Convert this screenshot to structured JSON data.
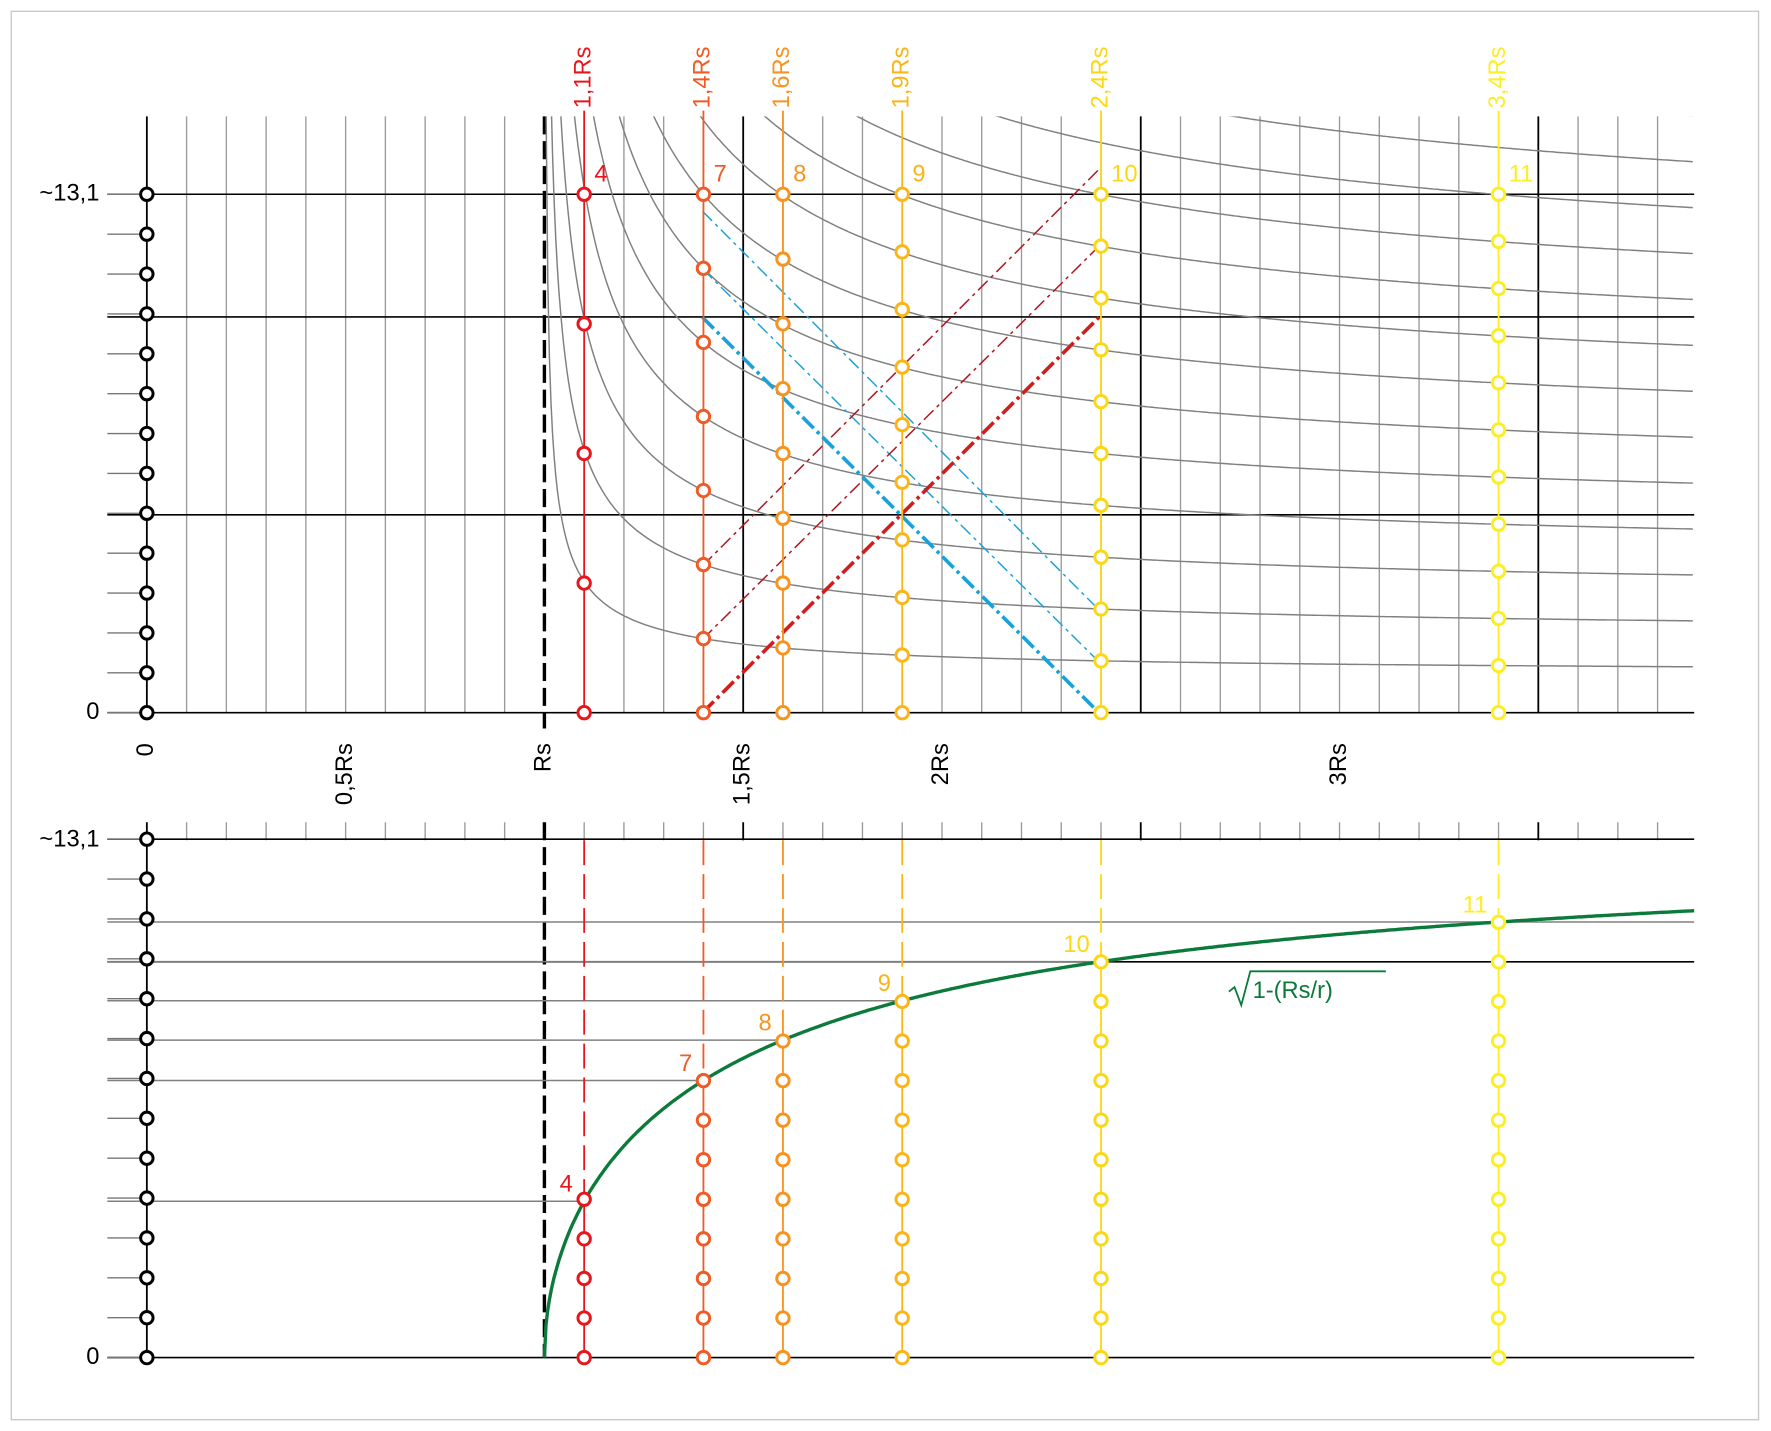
{
  "y_axis": {
    "top_label": "~13,1",
    "bottom_label": "0",
    "max": 13.1,
    "divisions": 13
  },
  "x_labels": [
    {
      "value": 0,
      "label": "0"
    },
    {
      "value": 0.5,
      "label": "0,5Rs"
    },
    {
      "value": 1,
      "label": "Rs"
    },
    {
      "value": 1.5,
      "label": "1,5Rs"
    },
    {
      "value": 2,
      "label": "2Rs"
    },
    {
      "value": 3,
      "label": "3Rs"
    }
  ],
  "columns": [
    {
      "label": "1,1Rs",
      "r": 1.1,
      "count": 4,
      "color": "#e8161c"
    },
    {
      "label": "1,4Rs",
      "r": 1.4,
      "count": 7,
      "color": "#f15a24"
    },
    {
      "label": "1,6Rs",
      "r": 1.6,
      "count": 8,
      "color": "#f7931e"
    },
    {
      "label": "1,9Rs",
      "r": 1.9,
      "count": 9,
      "color": "#fbb517"
    },
    {
      "label": "2,4Rs",
      "r": 2.4,
      "count": 10,
      "color": "#fcd714"
    },
    {
      "label": "3,4Rs",
      "r": 3.4,
      "count": 11,
      "color": "#fbee23"
    }
  ],
  "formula": "1-(Rs/r)",
  "formula_color": "#0b7a3b"
}
